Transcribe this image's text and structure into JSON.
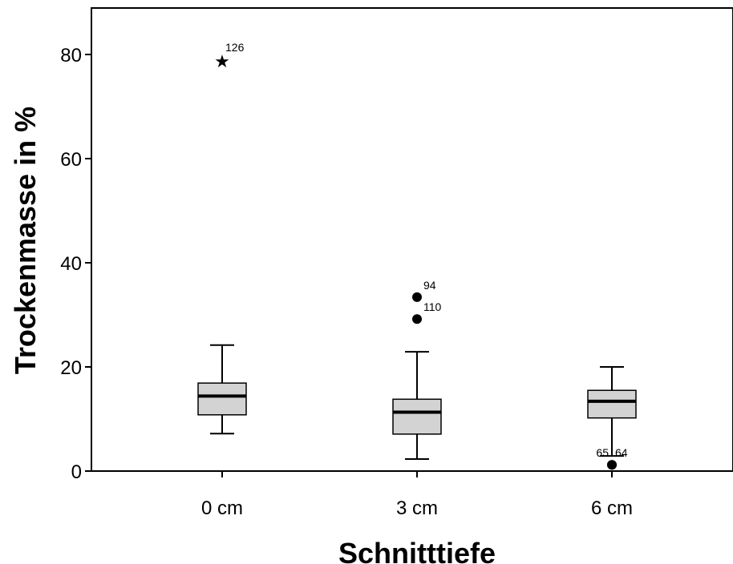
{
  "chart_data": {
    "type": "boxplot",
    "title": "",
    "xlabel": "Schnitttiefe",
    "ylabel": "Trockenmasse in %",
    "ylim": [
      0,
      89
    ],
    "yticks": [
      0,
      20,
      40,
      60,
      80
    ],
    "grid": false,
    "box_color": "#d3d3d3",
    "line_color": "#000000",
    "categories": [
      "0 cm",
      "3 cm",
      "6 cm"
    ],
    "boxes": [
      {
        "category": "0 cm",
        "whisker_low": 7.2,
        "q1": 10.8,
        "median": 14.4,
        "q3": 16.9,
        "whisker_high": 24.2,
        "outliers": [
          {
            "value": 78.8,
            "label": "126",
            "marker": "star"
          }
        ]
      },
      {
        "category": "3 cm",
        "whisker_low": 2.3,
        "q1": 7.1,
        "median": 11.3,
        "q3": 13.8,
        "whisker_high": 22.9,
        "outliers": [
          {
            "value": 33.4,
            "label": "94",
            "marker": "circle"
          },
          {
            "value": 29.2,
            "label": "110",
            "marker": "circle"
          }
        ]
      },
      {
        "category": "6 cm",
        "whisker_low": 2.9,
        "q1": 10.2,
        "median": 13.4,
        "q3": 15.5,
        "whisker_high": 20.0,
        "outliers": [
          {
            "value": 1.2,
            "label": "65",
            "marker": "circle"
          },
          {
            "value": 1.2,
            "label": "64",
            "marker": "circle"
          }
        ]
      }
    ]
  }
}
